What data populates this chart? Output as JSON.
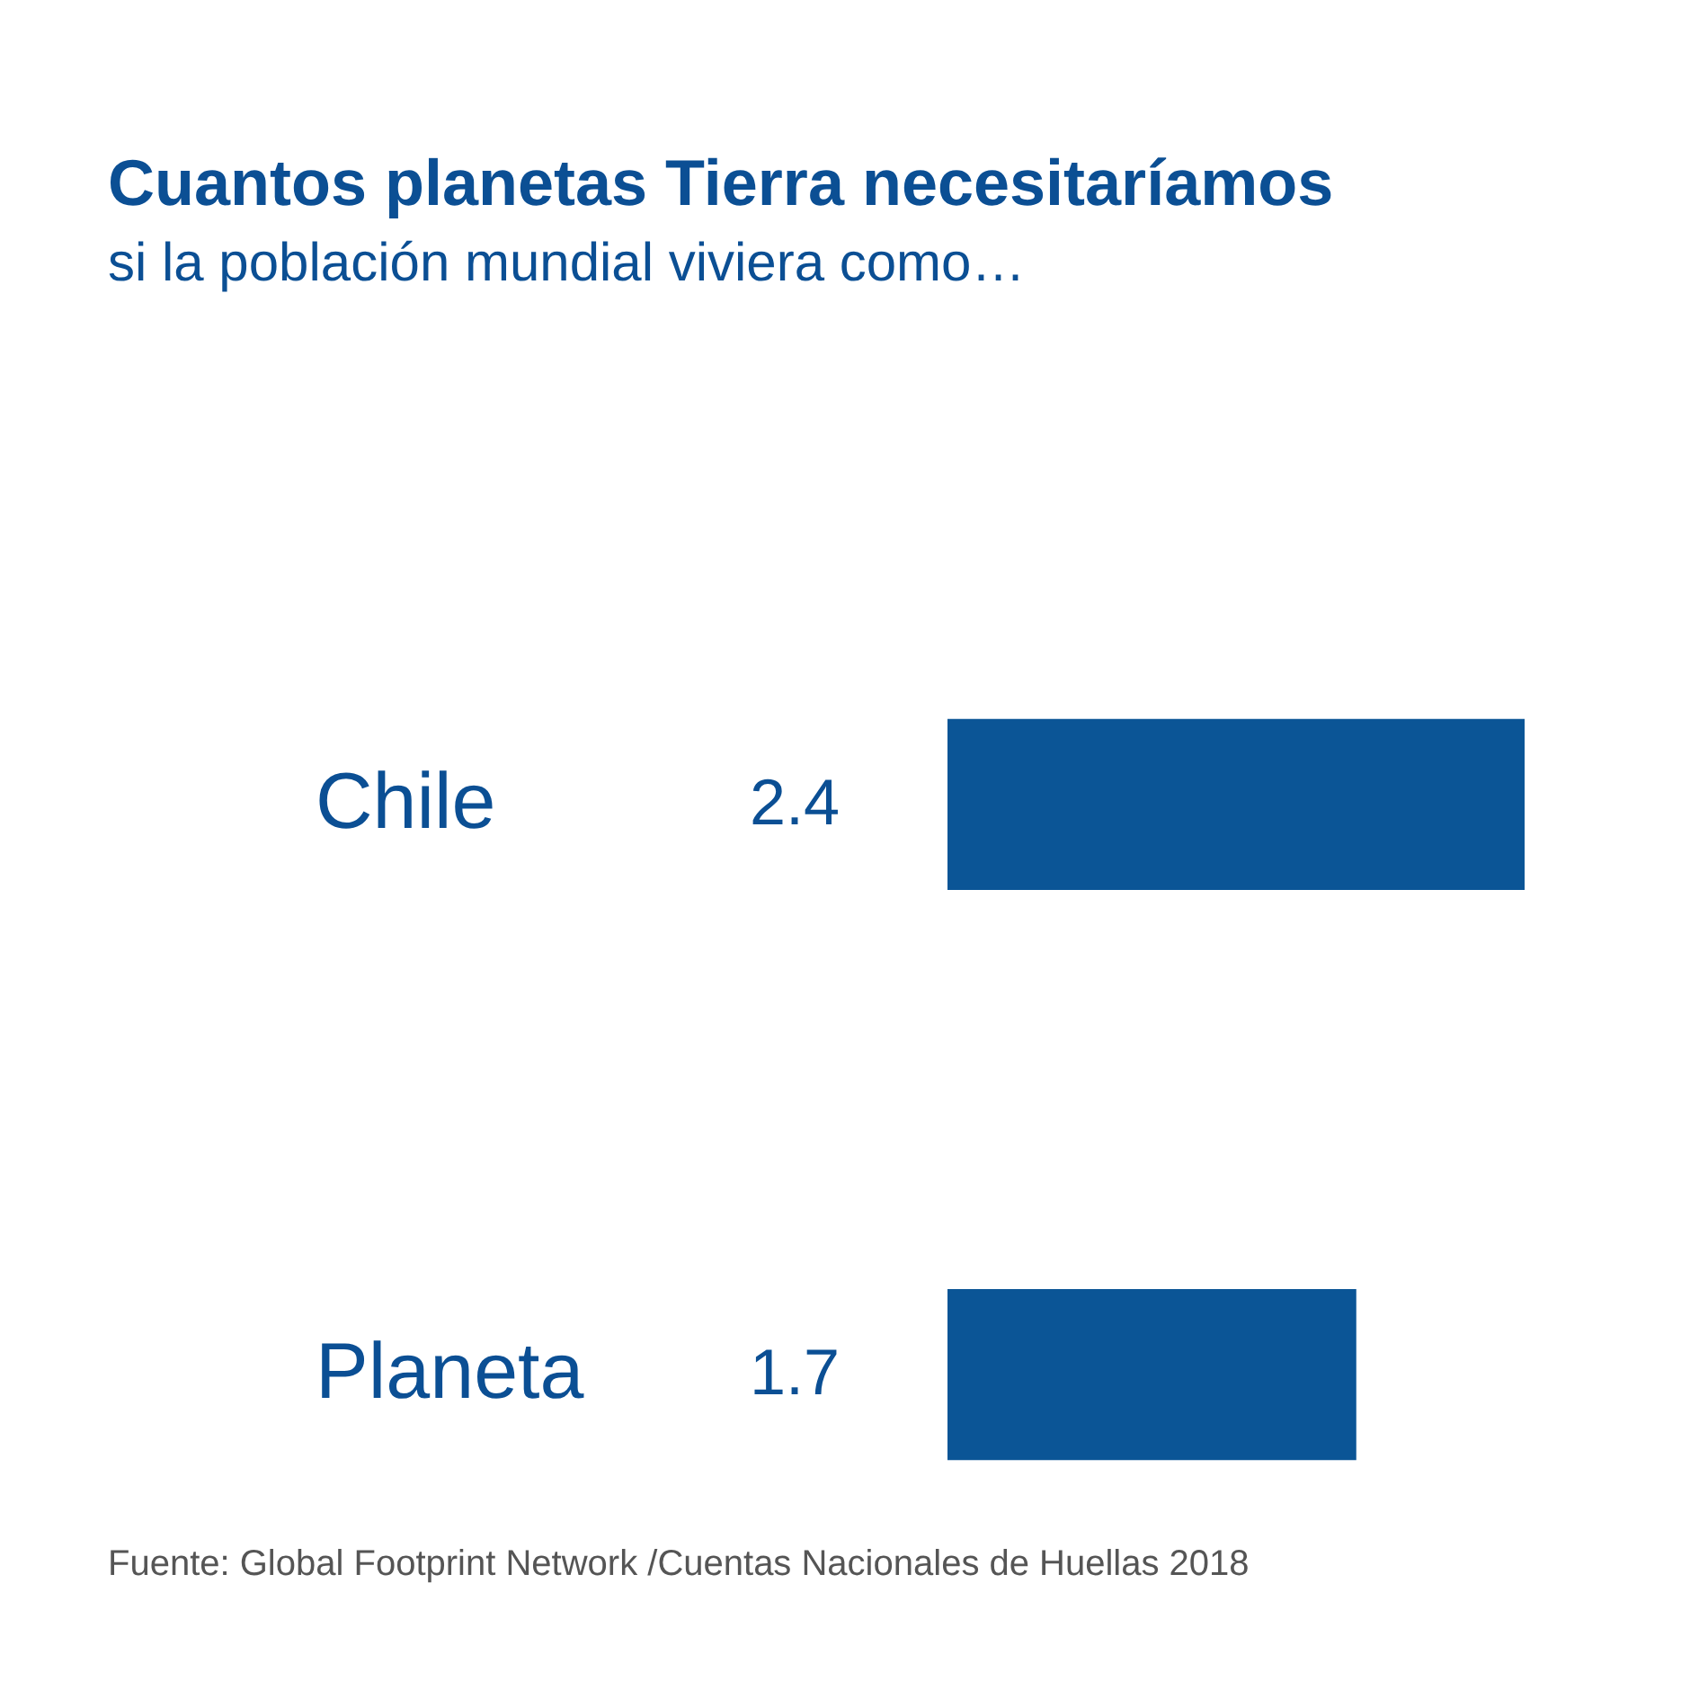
{
  "chart_data": {
    "type": "bar",
    "orientation": "horizontal",
    "title": "Cuantos planetas Tierra necesitaríamos",
    "subtitle": "si la población mundial viviera como…",
    "categories": [
      "Chile",
      "Planeta"
    ],
    "values": [
      2.4,
      1.7
    ],
    "color": "#0b5596",
    "data_labels": true,
    "tick_labels": "y",
    "annotations": [
      "Fuente: Global Footprint Network /Cuentas Nacionales de Huellas 2018"
    ]
  }
}
